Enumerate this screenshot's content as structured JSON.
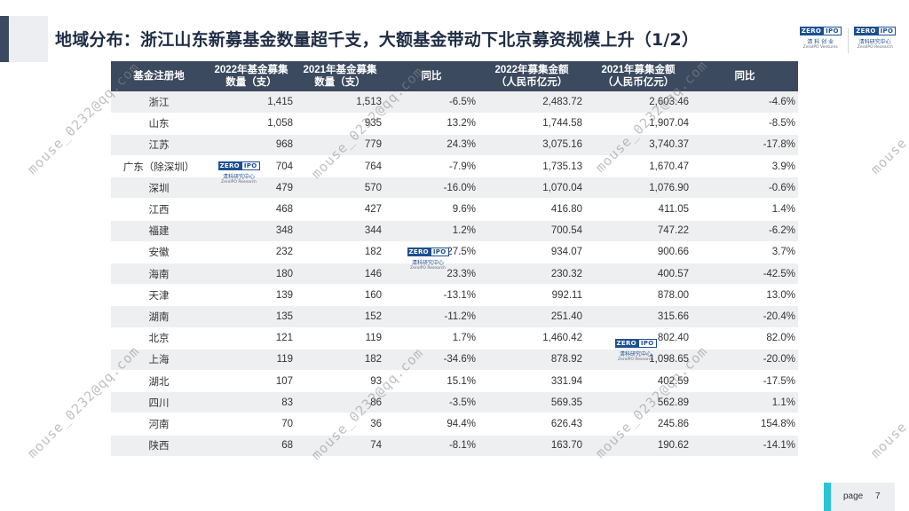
{
  "title": "地域分布：浙江山东新募基金数量超千支，大额基金带动下北京募资规模上升（1/2）",
  "logos": [
    {
      "badge_left": "ZERO",
      "badge_right": "IPO",
      "cn": "清 科 创 业",
      "en": "ZeroIPO Ventures"
    },
    {
      "badge_left": "ZERO",
      "badge_right": "IPO",
      "cn": "清科研究中心",
      "en": "ZeroIPO Research"
    }
  ],
  "table": {
    "headers": {
      "region": "基金注册地",
      "count_2022": "2022年基金募集\n数量（支）",
      "count_2021": "2021年基金募集\n数量（支）",
      "yoy_count": "同比",
      "amount_2022": "2022年募集金额\n（人民币亿元）",
      "amount_2021": "2021年募集金额\n（人民币亿元）",
      "yoy_amount": "同比"
    },
    "rows": [
      {
        "region": "浙江",
        "count_2022": "1,415",
        "count_2021": "1,513",
        "yoy_count": "-6.5%",
        "amount_2022": "2,483.72",
        "amount_2021": "2,603.46",
        "yoy_amount": "-4.6%"
      },
      {
        "region": "山东",
        "count_2022": "1,058",
        "count_2021": "935",
        "yoy_count": "13.2%",
        "amount_2022": "1,744.58",
        "amount_2021": "1,907.04",
        "yoy_amount": "-8.5%"
      },
      {
        "region": "江苏",
        "count_2022": "968",
        "count_2021": "779",
        "yoy_count": "24.3%",
        "amount_2022": "3,075.16",
        "amount_2021": "3,740.37",
        "yoy_amount": "-17.8%"
      },
      {
        "region": "广东（除深圳）",
        "count_2022": "704",
        "count_2021": "764",
        "yoy_count": "-7.9%",
        "amount_2022": "1,735.13",
        "amount_2021": "1,670.47",
        "yoy_amount": "3.9%"
      },
      {
        "region": "深圳",
        "count_2022": "479",
        "count_2021": "570",
        "yoy_count": "-16.0%",
        "amount_2022": "1,070.04",
        "amount_2021": "1,076.90",
        "yoy_amount": "-0.6%"
      },
      {
        "region": "江西",
        "count_2022": "468",
        "count_2021": "427",
        "yoy_count": "9.6%",
        "amount_2022": "416.80",
        "amount_2021": "411.05",
        "yoy_amount": "1.4%"
      },
      {
        "region": "福建",
        "count_2022": "348",
        "count_2021": "344",
        "yoy_count": "1.2%",
        "amount_2022": "700.54",
        "amount_2021": "747.22",
        "yoy_amount": "-6.2%"
      },
      {
        "region": "安徽",
        "count_2022": "232",
        "count_2021": "182",
        "yoy_count": "27.5%",
        "amount_2022": "934.07",
        "amount_2021": "900.66",
        "yoy_amount": "3.7%"
      },
      {
        "region": "海南",
        "count_2022": "180",
        "count_2021": "146",
        "yoy_count": "23.3%",
        "amount_2022": "230.32",
        "amount_2021": "400.57",
        "yoy_amount": "-42.5%"
      },
      {
        "region": "天津",
        "count_2022": "139",
        "count_2021": "160",
        "yoy_count": "-13.1%",
        "amount_2022": "992.11",
        "amount_2021": "878.00",
        "yoy_amount": "13.0%"
      },
      {
        "region": "湖南",
        "count_2022": "135",
        "count_2021": "152",
        "yoy_count": "-11.2%",
        "amount_2022": "251.40",
        "amount_2021": "315.66",
        "yoy_amount": "-20.4%"
      },
      {
        "region": "北京",
        "count_2022": "121",
        "count_2021": "119",
        "yoy_count": "1.7%",
        "amount_2022": "1,460.42",
        "amount_2021": "802.40",
        "yoy_amount": "82.0%"
      },
      {
        "region": "上海",
        "count_2022": "119",
        "count_2021": "182",
        "yoy_count": "-34.6%",
        "amount_2022": "878.92",
        "amount_2021": "1,098.65",
        "yoy_amount": "-20.0%"
      },
      {
        "region": "湖北",
        "count_2022": "107",
        "count_2021": "93",
        "yoy_count": "15.1%",
        "amount_2022": "331.94",
        "amount_2021": "402.59",
        "yoy_amount": "-17.5%"
      },
      {
        "region": "四川",
        "count_2022": "83",
        "count_2021": "86",
        "yoy_count": "-3.5%",
        "amount_2022": "569.35",
        "amount_2021": "562.89",
        "yoy_amount": "1.1%"
      },
      {
        "region": "河南",
        "count_2022": "70",
        "count_2021": "36",
        "yoy_count": "94.4%",
        "amount_2022": "626.43",
        "amount_2021": "245.86",
        "yoy_amount": "154.8%"
      },
      {
        "region": "陕西",
        "count_2022": "68",
        "count_2021": "74",
        "yoy_count": "-8.1%",
        "amount_2022": "163.70",
        "amount_2021": "190.62",
        "yoy_amount": "-14.1%"
      }
    ]
  },
  "watermark": {
    "text": "mouse_0232@qq.com",
    "logo": {
      "badge_left": "ZERO",
      "badge_right": "IPO",
      "cn": "清科研究中心",
      "en": "ZeroIPO Research"
    }
  },
  "footer": {
    "page_label": "page",
    "page_number": "7"
  },
  "colors": {
    "header_bg": "#3b4a5f",
    "title_text": "#1f2d45",
    "stripe": "#eeeff1",
    "accent": "#29c4d6",
    "logo_blue": "#1c4f91"
  }
}
